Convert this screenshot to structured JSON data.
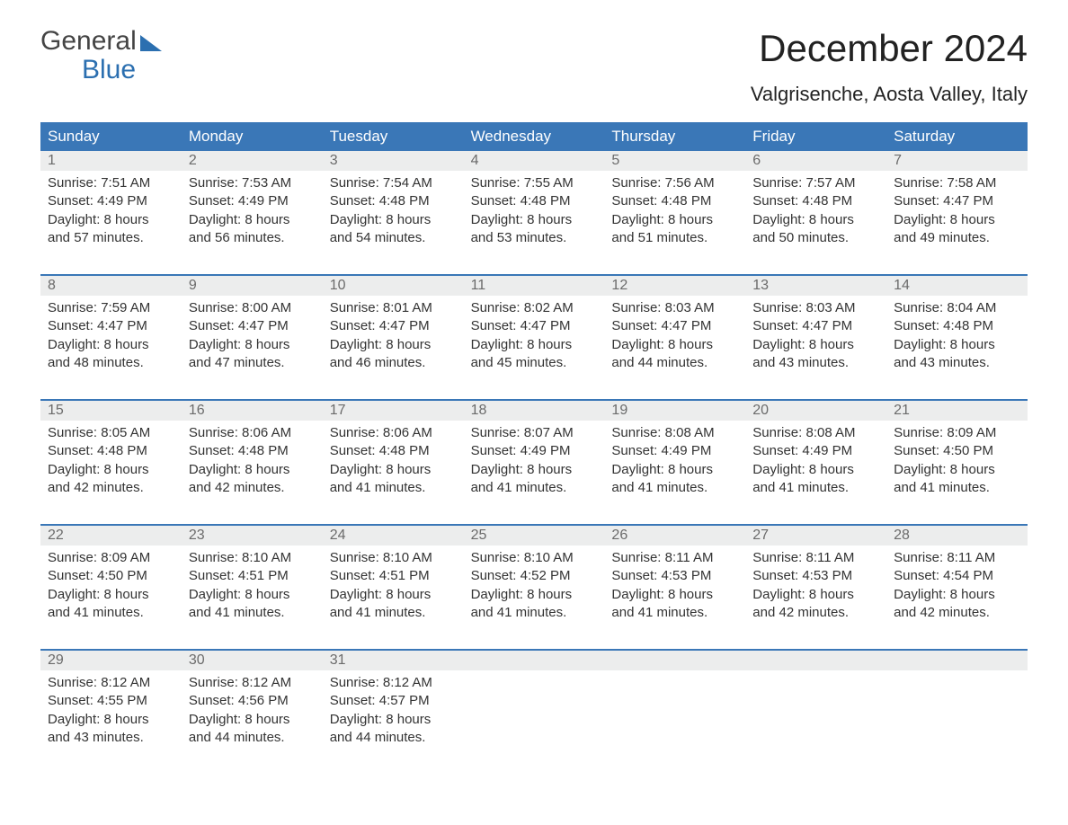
{
  "logo": {
    "line1": "General",
    "line2": "Blue"
  },
  "title": "December 2024",
  "location": "Valgrisenche, Aosta Valley, Italy",
  "colors": {
    "header_bg": "#3a77b7",
    "header_text": "#ffffff",
    "week_border": "#3a77b7",
    "daynum_bg": "#eceded",
    "daynum_text": "#6b6b6b",
    "body_text": "#333333",
    "logo_accent": "#2b6fb0",
    "background": "#ffffff"
  },
  "layout": {
    "columns": 7,
    "cell_fontsize": 15,
    "header_fontsize": 17,
    "title_fontsize": 42,
    "location_fontsize": 22
  },
  "day_labels": [
    "Sunday",
    "Monday",
    "Tuesday",
    "Wednesday",
    "Thursday",
    "Friday",
    "Saturday"
  ],
  "weeks": [
    [
      {
        "n": "1",
        "sunrise": "7:51 AM",
        "sunset": "4:49 PM",
        "daylight": "8 hours and 57 minutes."
      },
      {
        "n": "2",
        "sunrise": "7:53 AM",
        "sunset": "4:49 PM",
        "daylight": "8 hours and 56 minutes."
      },
      {
        "n": "3",
        "sunrise": "7:54 AM",
        "sunset": "4:48 PM",
        "daylight": "8 hours and 54 minutes."
      },
      {
        "n": "4",
        "sunrise": "7:55 AM",
        "sunset": "4:48 PM",
        "daylight": "8 hours and 53 minutes."
      },
      {
        "n": "5",
        "sunrise": "7:56 AM",
        "sunset": "4:48 PM",
        "daylight": "8 hours and 51 minutes."
      },
      {
        "n": "6",
        "sunrise": "7:57 AM",
        "sunset": "4:48 PM",
        "daylight": "8 hours and 50 minutes."
      },
      {
        "n": "7",
        "sunrise": "7:58 AM",
        "sunset": "4:47 PM",
        "daylight": "8 hours and 49 minutes."
      }
    ],
    [
      {
        "n": "8",
        "sunrise": "7:59 AM",
        "sunset": "4:47 PM",
        "daylight": "8 hours and 48 minutes."
      },
      {
        "n": "9",
        "sunrise": "8:00 AM",
        "sunset": "4:47 PM",
        "daylight": "8 hours and 47 minutes."
      },
      {
        "n": "10",
        "sunrise": "8:01 AM",
        "sunset": "4:47 PM",
        "daylight": "8 hours and 46 minutes."
      },
      {
        "n": "11",
        "sunrise": "8:02 AM",
        "sunset": "4:47 PM",
        "daylight": "8 hours and 45 minutes."
      },
      {
        "n": "12",
        "sunrise": "8:03 AM",
        "sunset": "4:47 PM",
        "daylight": "8 hours and 44 minutes."
      },
      {
        "n": "13",
        "sunrise": "8:03 AM",
        "sunset": "4:47 PM",
        "daylight": "8 hours and 43 minutes."
      },
      {
        "n": "14",
        "sunrise": "8:04 AM",
        "sunset": "4:48 PM",
        "daylight": "8 hours and 43 minutes."
      }
    ],
    [
      {
        "n": "15",
        "sunrise": "8:05 AM",
        "sunset": "4:48 PM",
        "daylight": "8 hours and 42 minutes."
      },
      {
        "n": "16",
        "sunrise": "8:06 AM",
        "sunset": "4:48 PM",
        "daylight": "8 hours and 42 minutes."
      },
      {
        "n": "17",
        "sunrise": "8:06 AM",
        "sunset": "4:48 PM",
        "daylight": "8 hours and 41 minutes."
      },
      {
        "n": "18",
        "sunrise": "8:07 AM",
        "sunset": "4:49 PM",
        "daylight": "8 hours and 41 minutes."
      },
      {
        "n": "19",
        "sunrise": "8:08 AM",
        "sunset": "4:49 PM",
        "daylight": "8 hours and 41 minutes."
      },
      {
        "n": "20",
        "sunrise": "8:08 AM",
        "sunset": "4:49 PM",
        "daylight": "8 hours and 41 minutes."
      },
      {
        "n": "21",
        "sunrise": "8:09 AM",
        "sunset": "4:50 PM",
        "daylight": "8 hours and 41 minutes."
      }
    ],
    [
      {
        "n": "22",
        "sunrise": "8:09 AM",
        "sunset": "4:50 PM",
        "daylight": "8 hours and 41 minutes."
      },
      {
        "n": "23",
        "sunrise": "8:10 AM",
        "sunset": "4:51 PM",
        "daylight": "8 hours and 41 minutes."
      },
      {
        "n": "24",
        "sunrise": "8:10 AM",
        "sunset": "4:51 PM",
        "daylight": "8 hours and 41 minutes."
      },
      {
        "n": "25",
        "sunrise": "8:10 AM",
        "sunset": "4:52 PM",
        "daylight": "8 hours and 41 minutes."
      },
      {
        "n": "26",
        "sunrise": "8:11 AM",
        "sunset": "4:53 PM",
        "daylight": "8 hours and 41 minutes."
      },
      {
        "n": "27",
        "sunrise": "8:11 AM",
        "sunset": "4:53 PM",
        "daylight": "8 hours and 42 minutes."
      },
      {
        "n": "28",
        "sunrise": "8:11 AM",
        "sunset": "4:54 PM",
        "daylight": "8 hours and 42 minutes."
      }
    ],
    [
      {
        "n": "29",
        "sunrise": "8:12 AM",
        "sunset": "4:55 PM",
        "daylight": "8 hours and 43 minutes."
      },
      {
        "n": "30",
        "sunrise": "8:12 AM",
        "sunset": "4:56 PM",
        "daylight": "8 hours and 44 minutes."
      },
      {
        "n": "31",
        "sunrise": "8:12 AM",
        "sunset": "4:57 PM",
        "daylight": "8 hours and 44 minutes."
      },
      null,
      null,
      null,
      null
    ]
  ],
  "labels": {
    "sunrise_prefix": "Sunrise: ",
    "sunset_prefix": "Sunset: ",
    "daylight_prefix": "Daylight: "
  }
}
